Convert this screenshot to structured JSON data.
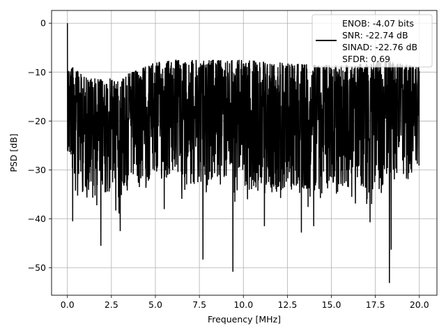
{
  "chart_data": {
    "type": "line",
    "title": "",
    "xlabel": "Frequency [MHz]",
    "ylabel": "PSD [dB]",
    "xlim": [
      -0.9,
      21.0
    ],
    "ylim": [
      -55.6,
      2.6
    ],
    "xticks": [
      0.0,
      2.5,
      5.0,
      7.5,
      10.0,
      12.5,
      15.0,
      17.5,
      20.0
    ],
    "xtick_labels": [
      "0.0",
      "2.5",
      "5.0",
      "7.5",
      "10.0",
      "12.5",
      "15.0",
      "17.5",
      "20.0"
    ],
    "yticks": [
      0,
      -10,
      -20,
      -30,
      -40,
      -50
    ],
    "ytick_labels": [
      "0",
      "−10",
      "−20",
      "−30",
      "−40",
      "−50"
    ],
    "grid": true,
    "legend_position": "top-right",
    "legend_entries": [
      "ENOB: -4.07 bits",
      "SNR: -22.74 dB",
      "SINAD: -22.76 dB",
      "SFDR: 0.69"
    ],
    "line_color": "#000000",
    "series": [
      {
        "x_range": [
          0.0,
          20.0
        ],
        "peak": {
          "x": 0.0,
          "y": 0.0
        },
        "upper_envelope": {
          "x": [
            0.0,
            0.3,
            1.0,
            2.0,
            3.0,
            4.0,
            5.0,
            6.0,
            8.0,
            10.0,
            12.0,
            14.0,
            16.0,
            18.0,
            20.0
          ],
          "y": [
            -8,
            -9,
            -11,
            -11.5,
            -11,
            -9.5,
            -8,
            -7.5,
            -7.5,
            -7.5,
            -8,
            -8.5,
            -8.5,
            -7.5,
            -9
          ]
        },
        "lower_envelope": {
          "x": [
            0.0,
            1.0,
            3.0,
            5.0,
            7.0,
            10.0,
            13.0,
            16.0,
            18.0,
            20.0
          ],
          "y": [
            -30,
            -36,
            -36,
            -33,
            -33,
            -34,
            -35,
            -35,
            -34,
            -30
          ]
        },
        "dips": [
          {
            "x": 0.3,
            "y": -40.5
          },
          {
            "x": 1.9,
            "y": -45.5
          },
          {
            "x": 3.0,
            "y": -42.5
          },
          {
            "x": 5.5,
            "y": -38
          },
          {
            "x": 7.7,
            "y": -48.3
          },
          {
            "x": 9.4,
            "y": -50.8
          },
          {
            "x": 11.2,
            "y": -41.5
          },
          {
            "x": 13.3,
            "y": -42.8
          },
          {
            "x": 14.0,
            "y": -41.5
          },
          {
            "x": 17.2,
            "y": -40.7
          },
          {
            "x": 18.3,
            "y": -53.1
          },
          {
            "x": 18.4,
            "y": -46.3
          }
        ],
        "num_points": 2000
      }
    ]
  }
}
